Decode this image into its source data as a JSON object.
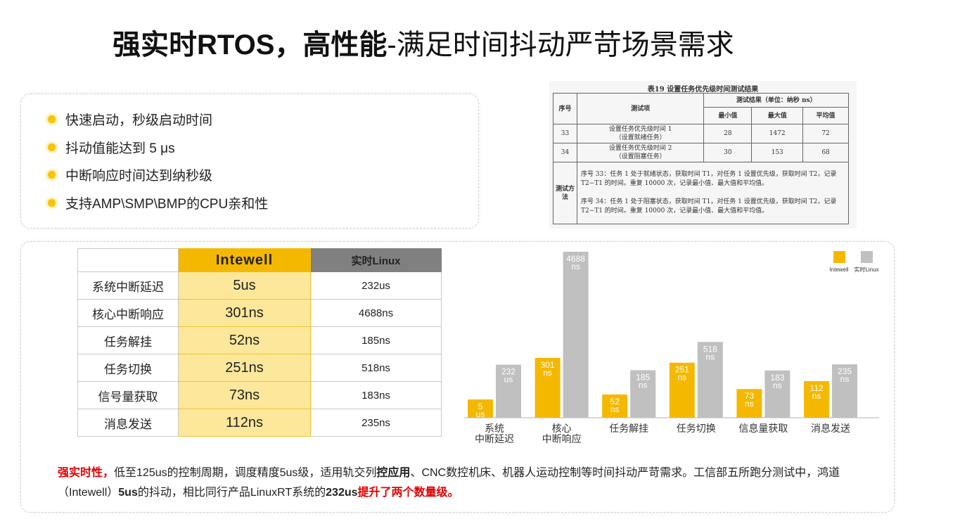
{
  "title": {
    "bold": "强实时RTOS，高性能",
    "rest": "-满足时间抖动严苛场景需求"
  },
  "features": [
    "快速启动，秒级启动时间",
    "抖动值能达到 5 μs",
    "中断响应时间达到纳秒级",
    "支持AMP\\SMP\\BMP的CPU亲和性"
  ],
  "test_table": {
    "caption": "表19 设置任务优先级时间测试结果",
    "h_seq": "序号",
    "h_item": "测试项",
    "h_result": "测试结果（单位：纳秒 ns）",
    "h_min": "最小值",
    "h_max": "最大值",
    "h_avg": "平均值",
    "rows": [
      {
        "seq": "33",
        "item1": "设置任务优先级时间 1",
        "item2": "（设置就绪任务）",
        "min": "28",
        "max": "1472",
        "avg": "72"
      },
      {
        "seq": "34",
        "item1": "设置任务优先级时间 2",
        "item2": "（设置阻塞任务）",
        "min": "30",
        "max": "153",
        "avg": "68"
      }
    ],
    "method_label": "测试方法",
    "method_1": "序号 33：任务 1 处于就绪状态，获取时间 T1，对任务 1 设置优先级，获取时间 T2，记录 T2−T1 的时间。重复 10000 次，记录最小值、最大值和平均值。",
    "method_2": "序号 34：任务 1 处于阻塞状态，获取时间 T1，对任务 1 设置优先级，获取时间 T2，记录 T2−T1 的时间。重复 10000 次，记录最小值、最大值和平均值。"
  },
  "comparison": {
    "col_intewell": "Intewell",
    "col_linux": "实时Linux",
    "rows": [
      {
        "label": "系统中断延迟",
        "intewell": "5us",
        "linux": "232us"
      },
      {
        "label": "核心中断响应",
        "intewell": "301ns",
        "linux": "4688ns"
      },
      {
        "label": "任务解挂",
        "intewell": "52ns",
        "linux": "185ns"
      },
      {
        "label": "任务切换",
        "intewell": "251ns",
        "linux": "518ns"
      },
      {
        "label": "信号量获取",
        "intewell": "73ns",
        "linux": "183ns"
      },
      {
        "label": "消息发送",
        "intewell": "112ns",
        "linux": "235ns"
      }
    ]
  },
  "chart_data": {
    "type": "bar",
    "categories": [
      [
        "系统",
        "中断延迟"
      ],
      [
        "核心",
        "中断响应"
      ],
      [
        "任务解挂"
      ],
      [
        "任务切换"
      ],
      [
        "信息量获取"
      ],
      [
        "消息发送"
      ]
    ],
    "series": [
      {
        "name": "Intewell",
        "color": "#f5b800",
        "values": [
          5,
          301,
          52,
          251,
          73,
          112
        ],
        "labels": [
          [
            "5",
            "us"
          ],
          [
            "301",
            "ns"
          ],
          [
            "52",
            "ns"
          ],
          [
            "251",
            "ns"
          ],
          [
            "73",
            "ns"
          ],
          [
            "112",
            "ns"
          ]
        ]
      },
      {
        "name": "实时Linux",
        "color": "#c0c0c0",
        "values": [
          232,
          4688,
          185,
          518,
          183,
          235
        ],
        "labels": [
          [
            "232",
            "us"
          ],
          [
            "4688",
            "ns"
          ],
          [
            "185",
            "ns"
          ],
          [
            "518",
            "ns"
          ],
          [
            "183",
            "ns"
          ],
          [
            "235",
            "ns"
          ]
        ]
      }
    ],
    "legend": "top-right",
    "grid": false
  },
  "summary": {
    "lead": "强实时性，",
    "t1": "低至125us的控制周期，调度精度5us级，适用轨交列",
    "b1": "控应用",
    "t2": "、CNC数控机床、机器人运动控制等时间抖动严苛需求。工信部五所跑分测试中，鸿道（Intewell）",
    "b2": "5us",
    "t3": "的抖动，相比同行产品LinuxRT系统的",
    "b3": "232us",
    "r1": "提升了两个数量级。"
  }
}
